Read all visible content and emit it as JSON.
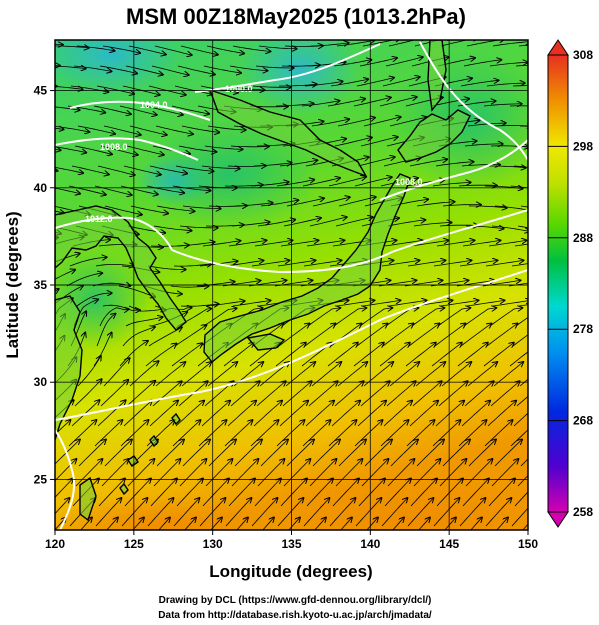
{
  "title": "MSM 00Z18May2025 (1013.2hPa)",
  "xlabel": "Longitude (degrees)",
  "ylabel": "Latitude  (degrees)",
  "x_ticks": [
    "120",
    "125",
    "130",
    "135",
    "140",
    "145",
    "150"
  ],
  "y_ticks": [
    "25",
    "30",
    "35",
    "40",
    "45"
  ],
  "colorbar_ticks": [
    "308",
    "298",
    "288",
    "278",
    "268",
    "258"
  ],
  "contour_labels": [
    "1000.0",
    "1004.0",
    "1008.0",
    "1012.0",
    "1008.0"
  ],
  "credit_line1": "Drawing by DCL (https://www.gfd-dennou.org/library/dcl/)",
  "credit_line2": "Data from http://database.rish.kyoto-u.ac.jp/arch/jmadata/",
  "colors": {
    "cold_low": "#2ab8c8",
    "cool": "#22c860",
    "mild": "#7ee000",
    "warm": "#e8e000",
    "hot": "#f0a000",
    "isobar": "#ffffff",
    "coast": "#000000"
  },
  "chart_data": {
    "type": "heatmap",
    "title": "MSM 00Z18May2025 (1013.2hPa)",
    "xlabel": "Longitude (degrees)",
    "ylabel": "Latitude  (degrees)",
    "xlim": [
      120,
      150
    ],
    "ylim": [
      22.4,
      47.6
    ],
    "x_ticks": [
      120,
      125,
      130,
      135,
      140,
      145,
      150
    ],
    "y_ticks": [
      25,
      30,
      35,
      40,
      45
    ],
    "colorbar_range": [
      258,
      308
    ],
    "colorbar_ticks": [
      308,
      298,
      288,
      278,
      268,
      258
    ],
    "grid": true
  }
}
